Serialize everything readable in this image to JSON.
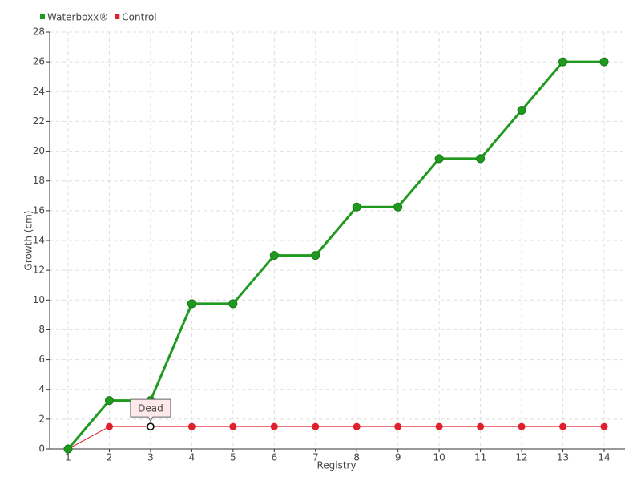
{
  "chart_data": {
    "type": "line",
    "x_label": "Registry",
    "y_label": "Growth (cm)",
    "categories": [
      "1",
      "2",
      "3",
      "4",
      "5",
      "6",
      "7",
      "8",
      "9",
      "10",
      "11",
      "12",
      "13",
      "14"
    ],
    "series": [
      {
        "name": "Waterboxx®",
        "color": "#1f9a1f",
        "values": [
          0,
          3.25,
          3.25,
          9.75,
          9.75,
          13,
          13,
          16.25,
          16.25,
          19.5,
          19.5,
          22.75,
          26,
          26
        ]
      },
      {
        "name": "Control",
        "color": "#e0202c",
        "values": [
          0,
          1.5,
          1.5,
          1.5,
          1.5,
          1.5,
          1.5,
          1.5,
          1.5,
          1.5,
          1.5,
          1.5,
          1.5,
          1.5
        ]
      }
    ],
    "annotation": {
      "text": "Dead",
      "x": "3",
      "y": 1.5
    },
    "ylim": [
      0,
      28
    ],
    "yticks": [
      0,
      2,
      4,
      6,
      8,
      10,
      12,
      14,
      16,
      18,
      20,
      22,
      24,
      26,
      28
    ],
    "grid": true,
    "legend": "top-left"
  }
}
